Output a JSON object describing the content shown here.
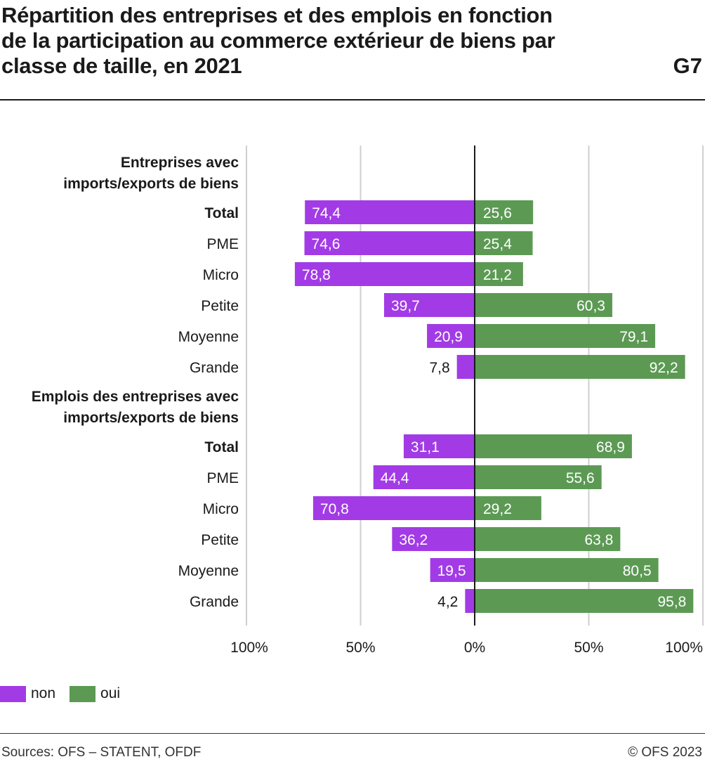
{
  "header": {
    "title_lines": [
      "Répartition des entreprises et des emplois en fonction",
      "de la participation au commerce extérieur de biens par",
      "classe de taille, en 2021"
    ],
    "figure_id": "G7"
  },
  "chart_data": {
    "type": "bar",
    "orientation": "horizontal-diverging",
    "xlim": [
      -100,
      100
    ],
    "x_ticks": [
      "100%",
      "50%",
      "0%",
      "50%",
      "100%"
    ],
    "grid": true,
    "legend_position": "bottom-left",
    "series": [
      {
        "name": "non",
        "color": "#a23be6",
        "direction": "left"
      },
      {
        "name": "oui",
        "color": "#5c9a54",
        "direction": "right"
      }
    ],
    "groups": [
      {
        "heading_lines": [
          "Entreprises avec",
          "imports/exports de biens"
        ],
        "rows": [
          {
            "label": "Total",
            "bold": true,
            "non": 74.4,
            "oui": 25.6,
            "non_label": "74,4",
            "oui_label": "25,6"
          },
          {
            "label": "PME",
            "bold": false,
            "non": 74.6,
            "oui": 25.4,
            "non_label": "74,6",
            "oui_label": "25,4"
          },
          {
            "label": "Micro",
            "bold": false,
            "non": 78.8,
            "oui": 21.2,
            "non_label": "78,8",
            "oui_label": "21,2"
          },
          {
            "label": "Petite",
            "bold": false,
            "non": 39.7,
            "oui": 60.3,
            "non_label": "39,7",
            "oui_label": "60,3"
          },
          {
            "label": "Moyenne",
            "bold": false,
            "non": 20.9,
            "oui": 79.1,
            "non_label": "20,9",
            "oui_label": "79,1"
          },
          {
            "label": "Grande",
            "bold": false,
            "non": 7.8,
            "oui": 92.2,
            "non_label": "7,8",
            "oui_label": "92,2"
          }
        ]
      },
      {
        "heading_lines": [
          "Emplois des entreprises avec",
          "imports/exports de biens"
        ],
        "rows": [
          {
            "label": "Total",
            "bold": true,
            "non": 31.1,
            "oui": 68.9,
            "non_label": "31,1",
            "oui_label": "68,9"
          },
          {
            "label": "PME",
            "bold": false,
            "non": 44.4,
            "oui": 55.6,
            "non_label": "44,4",
            "oui_label": "55,6"
          },
          {
            "label": "Micro",
            "bold": false,
            "non": 70.8,
            "oui": 29.2,
            "non_label": "70,8",
            "oui_label": "29,2"
          },
          {
            "label": "Petite",
            "bold": false,
            "non": 36.2,
            "oui": 63.8,
            "non_label": "36,2",
            "oui_label": "63,8"
          },
          {
            "label": "Moyenne",
            "bold": false,
            "non": 19.5,
            "oui": 80.5,
            "non_label": "19,5",
            "oui_label": "80,5"
          },
          {
            "label": "Grande",
            "bold": false,
            "non": 4.2,
            "oui": 95.8,
            "non_label": "4,2",
            "oui_label": "95,8"
          }
        ]
      }
    ]
  },
  "legend": {
    "items": [
      {
        "label": "non",
        "color": "#a23be6"
      },
      {
        "label": "oui",
        "color": "#5c9a54"
      }
    ]
  },
  "footer": {
    "source": "Sources: OFS – STATENT, OFDF",
    "copyright": "© OFS 2023"
  }
}
